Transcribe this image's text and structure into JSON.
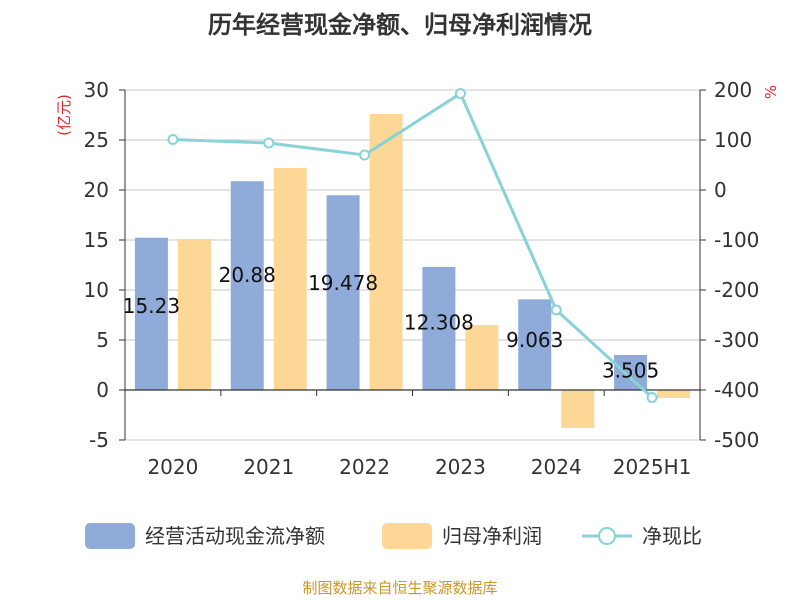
{
  "chart_data": {
    "type": "bar",
    "title": "历年经营现金净额、归母净利润情况",
    "categories": [
      "2020",
      "2021",
      "2022",
      "2023",
      "2024",
      "2025H1"
    ],
    "left_unit": "(亿元)",
    "right_unit": "%",
    "ylim": [
      -5,
      30
    ],
    "y_ticks": [
      -5,
      0,
      5,
      10,
      15,
      20,
      25,
      30
    ],
    "y2lim": [
      -500,
      200
    ],
    "y2_ticks": [
      -500,
      -400,
      -300,
      -200,
      -100,
      0,
      100,
      200
    ],
    "series": [
      {
        "name": "经营活动现金流净额",
        "kind": "bar",
        "color": "#8eabd9",
        "values": [
          15.23,
          20.88,
          19.478,
          12.308,
          9.063,
          3.505
        ],
        "labels": [
          "15.23",
          "20.88",
          "19.478",
          "12.308",
          "9.063",
          "3.505"
        ]
      },
      {
        "name": "归母净利润",
        "kind": "bar",
        "color": "#fdd796",
        "values": [
          15.1,
          22.2,
          27.6,
          6.5,
          -3.8,
          -0.8
        ]
      },
      {
        "name": "净现比",
        "kind": "line",
        "axis": "right",
        "color": "#88d3d8",
        "values": [
          101,
          94,
          70,
          193,
          -240,
          -415
        ]
      }
    ],
    "grid": true,
    "legend_position": "bottom",
    "source": "制图数据来自恒生聚源数据库"
  }
}
